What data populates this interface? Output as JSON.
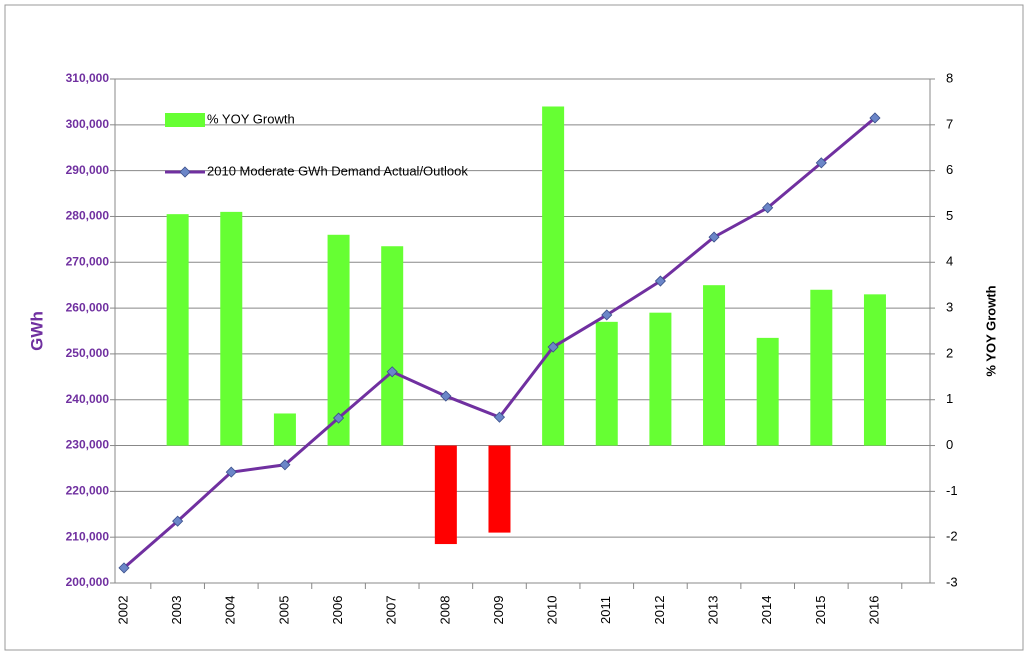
{
  "chart_data": {
    "type": "bar-line",
    "categories": [
      "2002",
      "2003",
      "2004",
      "2005",
      "2006",
      "2007",
      "2008",
      "2009",
      "2010",
      "2011",
      "2012",
      "2013",
      "2014",
      "2015",
      "2016"
    ],
    "y_label": "GWh",
    "y2_label": "% YOY Growth",
    "ylim": [
      200000,
      310000
    ],
    "yticks": [
      {
        "value": 200000,
        "label": "200,000"
      },
      {
        "value": 210000,
        "label": "210,000"
      },
      {
        "value": 220000,
        "label": "220,000"
      },
      {
        "value": 230000,
        "label": "230,000"
      },
      {
        "value": 240000,
        "label": "240,000"
      },
      {
        "value": 250000,
        "label": "250,000"
      },
      {
        "value": 260000,
        "label": "260,000"
      },
      {
        "value": 270000,
        "label": "270,000"
      },
      {
        "value": 280000,
        "label": "280,000"
      },
      {
        "value": 290000,
        "label": "290,000"
      },
      {
        "value": 300000,
        "label": "300,000"
      },
      {
        "value": 310000,
        "label": "310,000"
      }
    ],
    "y2lim": [
      -3,
      8
    ],
    "y2ticks": [
      -3,
      -2,
      -1,
      0,
      1,
      2,
      3,
      4,
      5,
      6,
      7,
      8
    ],
    "grid": true,
    "legend": "upper left",
    "series": [
      {
        "name": "% YOY Growth",
        "type": "bar",
        "axis": "y2",
        "color": "#66ff33",
        "negative_color": "#ff0000",
        "values": [
          null,
          5.05,
          5.1,
          0.7,
          4.6,
          4.35,
          -2.15,
          -1.9,
          7.4,
          2.7,
          2.9,
          3.5,
          2.35,
          3.4,
          3.3
        ]
      },
      {
        "name": "2010 Moderate GWh  Demand Actual/Outlook",
        "type": "line",
        "color": "#7030a0",
        "marker_color": "#6b86c8",
        "values": [
          203300,
          213500,
          224200,
          225800,
          236000,
          246100,
          240800,
          236200,
          251500,
          258500,
          265900,
          275500,
          281900,
          291700,
          301500
        ]
      }
    ]
  }
}
